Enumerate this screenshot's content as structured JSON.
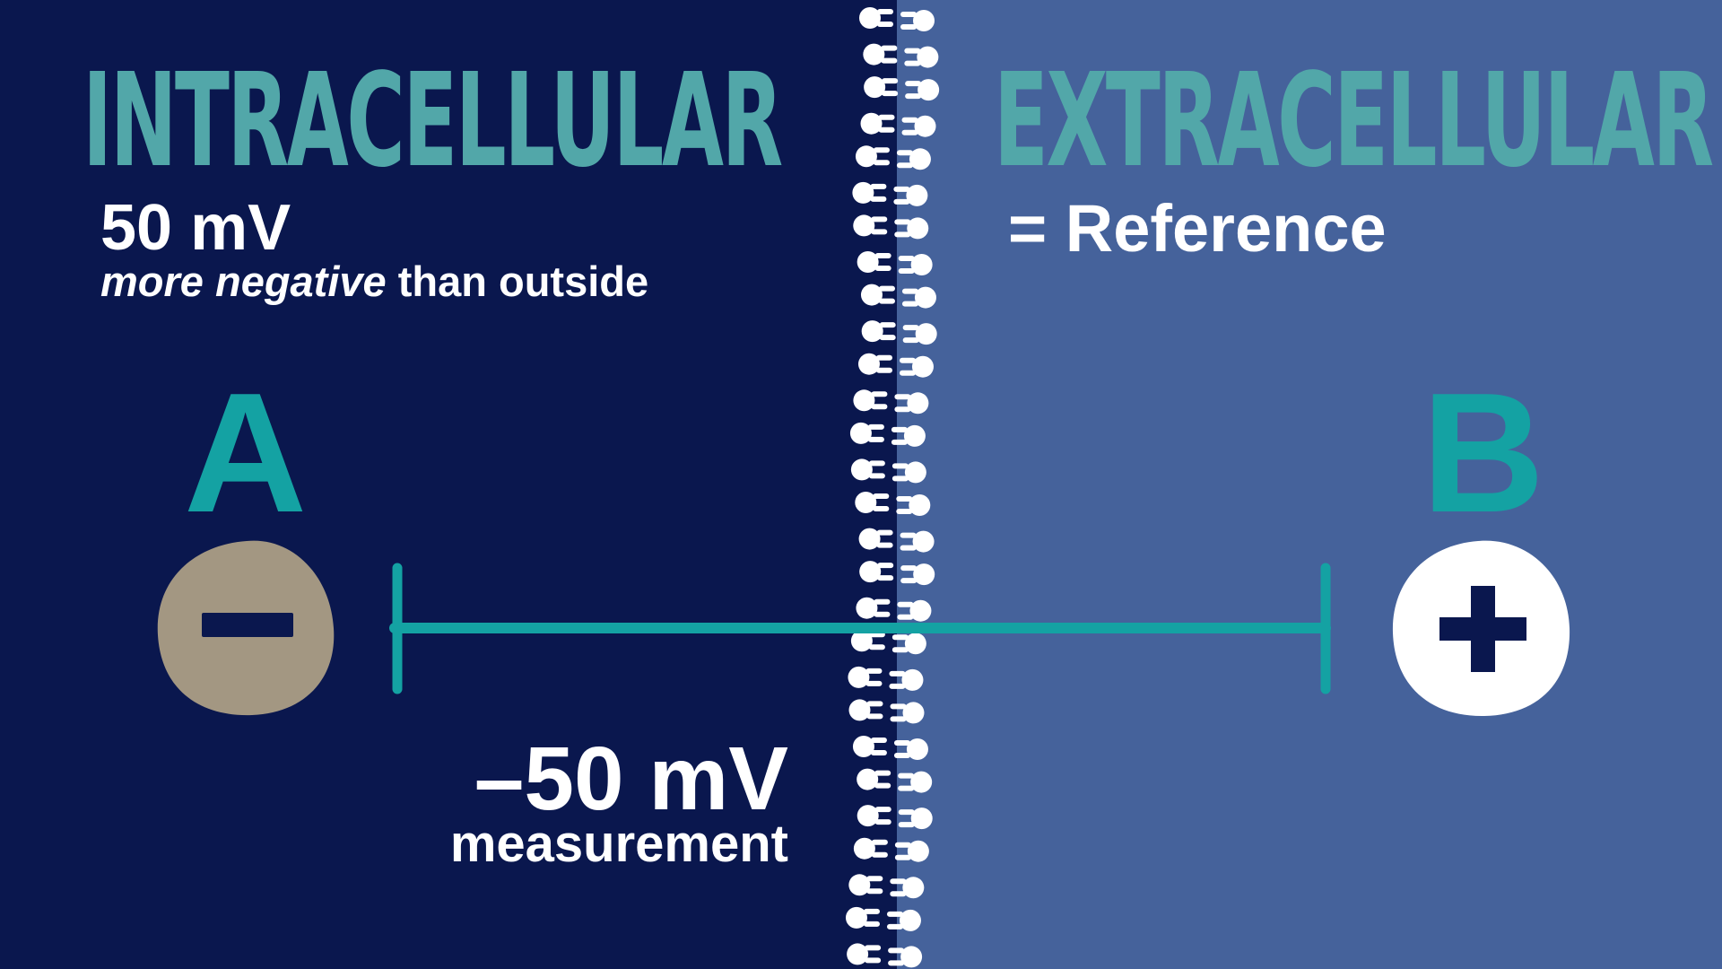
{
  "left_region": {
    "heading": "INTRACELLULAR",
    "value": "50 mV",
    "description_emphasis": "more negative",
    "description_rest": " than outside",
    "point_label": "A",
    "charge_symbol": "minus-icon"
  },
  "right_region": {
    "heading": "EXTRACELLULAR",
    "reference": "= Reference",
    "point_label": "B",
    "charge_symbol": "plus-icon"
  },
  "measurement": {
    "value": "–50 mV",
    "label": "measurement"
  },
  "colors": {
    "intracellular_bg": "#0a174e",
    "extracellular_bg": "#45629b",
    "heading": "#52a7a9",
    "accent_teal": "#14a2a3",
    "negative_ion": "#a39782",
    "positive_ion": "#ffffff"
  }
}
